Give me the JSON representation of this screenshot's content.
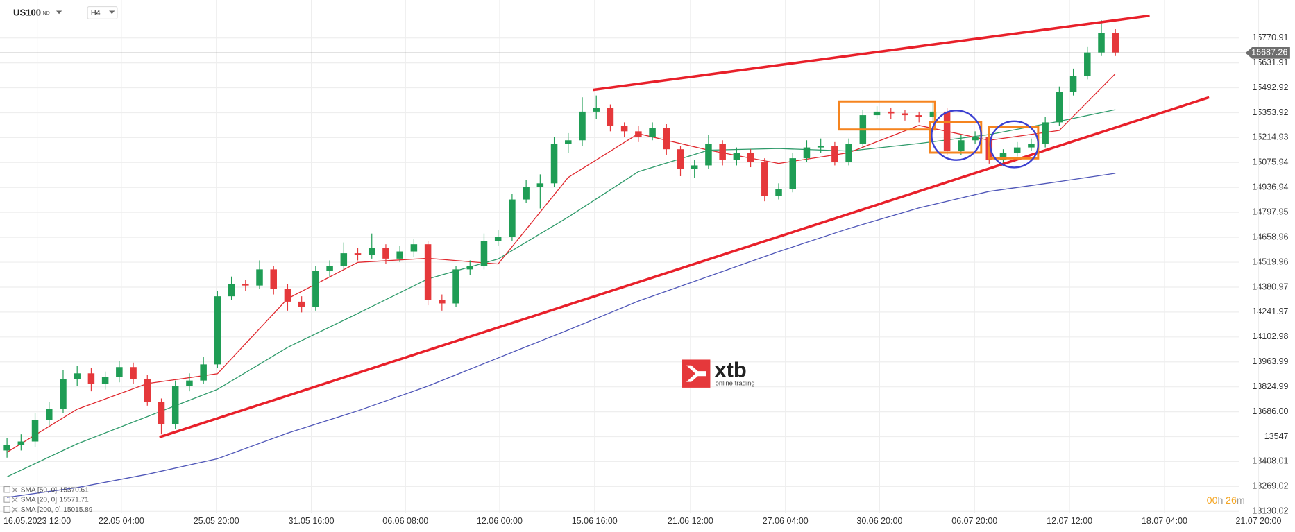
{
  "chart_data": {
    "type": "candlestick",
    "symbol": "US100",
    "market": "IND",
    "timeframe": "H4",
    "up_color": "#1f9d55",
    "down_color": "#e5383b",
    "open": [
      13470,
      13500,
      13520,
      13640,
      13700,
      13870,
      13900,
      13840,
      13880,
      13935,
      13870,
      13740,
      13615,
      13830,
      13860,
      13950,
      14330,
      14400,
      14390,
      14480,
      14370,
      14300,
      14270,
      14470,
      14500,
      14570,
      14560,
      14600,
      14540,
      14580,
      14620,
      14310,
      14290,
      14480,
      14500,
      14640,
      14660,
      14870,
      14940,
      14960,
      15180,
      15200,
      15360,
      15380,
      15280,
      15250,
      15220,
      15270,
      15150,
      15040,
      15060,
      15180,
      15090,
      15130,
      15080,
      14890,
      14930,
      15100,
      15160,
      15170,
      15080,
      15180,
      15340,
      15360,
      15350,
      15340,
      15330,
      15360,
      15140,
      15200,
      15220,
      15090,
      15130,
      15160,
      15180,
      15300,
      15470,
      15560,
      15690,
      15800
    ],
    "high": [
      13540,
      13560,
      13680,
      13740,
      13920,
      13940,
      13930,
      13910,
      13970,
      13960,
      13890,
      13760,
      13860,
      13900,
      13990,
      14360,
      14440,
      14420,
      14530,
      14500,
      14400,
      14330,
      14500,
      14530,
      14630,
      14600,
      14680,
      14620,
      14610,
      14650,
      14640,
      14340,
      14500,
      14530,
      14680,
      14700,
      14900,
      14980,
      15010,
      15220,
      15240,
      15440,
      15450,
      15400,
      15300,
      15280,
      15300,
      15290,
      15170,
      15090,
      15230,
      15200,
      15160,
      15150,
      15100,
      14960,
      15130,
      15200,
      15210,
      15190,
      15210,
      15370,
      15390,
      15380,
      15370,
      15360,
      15420,
      15380,
      15230,
      15250,
      15240,
      15150,
      15190,
      15210,
      15330,
      15500,
      15600,
      15720,
      15870,
      15820
    ],
    "low": [
      13430,
      13470,
      13490,
      13610,
      13680,
      13830,
      13800,
      13810,
      13850,
      13840,
      13720,
      13560,
      13590,
      13800,
      13840,
      13930,
      14310,
      14360,
      14370,
      14340,
      14250,
      14240,
      14250,
      14440,
      14480,
      14530,
      14540,
      14510,
      14520,
      14550,
      14280,
      14250,
      14270,
      14450,
      14480,
      14610,
      14640,
      14850,
      14820,
      14940,
      15130,
      15170,
      15320,
      15250,
      15220,
      15190,
      15200,
      15120,
      15000,
      14990,
      15040,
      15060,
      15060,
      15050,
      14860,
      14870,
      14910,
      15080,
      15130,
      15060,
      15060,
      15160,
      15320,
      15320,
      15310,
      15300,
      15300,
      15120,
      15120,
      15180,
      15070,
      15070,
      15110,
      15140,
      15160,
      15280,
      15450,
      15540,
      15670,
      15670
    ],
    "close": [
      13500,
      13520,
      13640,
      13700,
      13870,
      13900,
      13840,
      13880,
      13935,
      13870,
      13740,
      13615,
      13830,
      13860,
      13950,
      14330,
      14400,
      14390,
      14480,
      14370,
      14300,
      14270,
      14470,
      14500,
      14570,
      14560,
      14600,
      14540,
      14580,
      14620,
      14310,
      14290,
      14480,
      14500,
      14640,
      14660,
      14870,
      14940,
      14960,
      15180,
      15200,
      15360,
      15380,
      15280,
      15250,
      15220,
      15270,
      15150,
      15040,
      15060,
      15180,
      15090,
      15130,
      15080,
      14890,
      14930,
      15100,
      15160,
      15170,
      15080,
      15180,
      15340,
      15360,
      15350,
      15340,
      15330,
      15360,
      15140,
      15200,
      15220,
      15090,
      15130,
      15160,
      15180,
      15300,
      15470,
      15560,
      15690,
      15800,
      15690
    ],
    "series": [
      {
        "name": "SMA [50, 0]",
        "color": "#2e9a6a",
        "x": [
          0,
          5,
          10,
          15,
          20,
          25,
          30,
          35,
          40,
          45,
          50,
          55,
          60,
          65,
          70,
          75,
          79
        ],
        "values": [
          13323,
          13507,
          13659,
          13811,
          14045,
          14234,
          14427,
          14538,
          14772,
          15025,
          15145,
          15154,
          15140,
          15182,
          15232,
          15306,
          15370.61
        ]
      },
      {
        "name": "SMA [20, 0]",
        "color": "#e0282e",
        "x": [
          0,
          5,
          10,
          15,
          20,
          25,
          30,
          35,
          40,
          45,
          50,
          55,
          60,
          65,
          70,
          75,
          79
        ],
        "values": [
          13460,
          13700,
          13843,
          13898,
          14317,
          14519,
          14542,
          14510,
          14993,
          15237,
          15145,
          15071,
          15131,
          15283,
          15200,
          15255,
          15571.71
        ]
      },
      {
        "name": "SMA [200, 0]",
        "color": "#4f56b8",
        "x": [
          0,
          5,
          10,
          15,
          20,
          25,
          30,
          35,
          40,
          45,
          50,
          55,
          60,
          65,
          70,
          75,
          79
        ],
        "values": [
          13208,
          13263,
          13337,
          13424,
          13567,
          13691,
          13829,
          13986,
          14142,
          14303,
          14441,
          14579,
          14708,
          14823,
          14915,
          14970,
          15015.89
        ]
      }
    ],
    "last_price": 15687.26,
    "xlim": [
      -0.5,
      91.8
    ],
    "xticks": [
      {
        "value": 2.15,
        "label": "16.05.2023 12:00"
      },
      {
        "value": 8.15,
        "label": "22.05 04:00"
      },
      {
        "value": 14.92,
        "label": "25.05 20:00"
      },
      {
        "value": 21.69,
        "label": "31.05 16:00"
      },
      {
        "value": 28.4,
        "label": "06.06 08:00"
      },
      {
        "value": 35.11,
        "label": "12.06 00:00"
      },
      {
        "value": 41.88,
        "label": "15.06 16:00"
      },
      {
        "value": 48.71,
        "label": "21.06 12:00"
      },
      {
        "value": 55.48,
        "label": "27.06 04:00"
      },
      {
        "value": 62.19,
        "label": "30.06 20:00"
      },
      {
        "value": 68.96,
        "label": "06.07 20:00"
      },
      {
        "value": 75.73,
        "label": "12.07 12:00"
      },
      {
        "value": 82.5,
        "label": "18.07 04:00"
      },
      {
        "value": 89.2,
        "label": "21.07 20:00"
      }
    ],
    "ylim": [
      13084.2,
      15982.5
    ],
    "yticks": [
      15770.91,
      15631.91,
      15492.92,
      15353.92,
      15214.93,
      15075.94,
      14936.94,
      14797.95,
      14658.96,
      14519.96,
      14380.97,
      14241.97,
      14102.98,
      13963.99,
      13824.99,
      {
        "value": 13686,
        "label": "13686.00"
      },
      13547,
      13408.01,
      13269.02,
      13130.02
    ],
    "grid": true,
    "countdown": [
      "00",
      "h",
      "26",
      "m"
    ],
    "logo": {
      "name": "xtb",
      "tagline": "online trading"
    }
  }
}
